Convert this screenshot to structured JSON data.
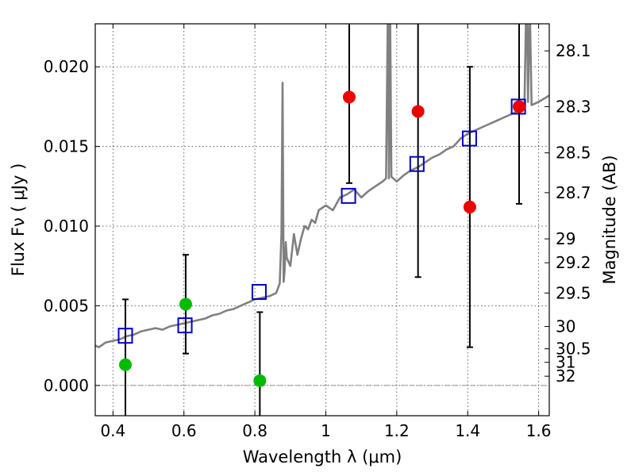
{
  "chart_data": {
    "type": "scatter",
    "xlabel": "Wavelength  λ (μm)",
    "ylabel": "Flux  Fν  ( μJy )",
    "y2label": "Magnitude (AB)",
    "xlim": [
      0.35,
      1.63
    ],
    "ylim": [
      -0.0019,
      0.0227
    ],
    "grid": true,
    "x_ticks": [
      0.4,
      0.6,
      0.8,
      1.0,
      1.2,
      1.4,
      1.6
    ],
    "x_tick_labels": [
      "0.4",
      "0.6",
      "0.8",
      "1",
      "1.2",
      "1.4",
      "1.6"
    ],
    "y_ticks": [
      0.0,
      0.005,
      0.01,
      0.015,
      0.02
    ],
    "y_tick_labels": [
      "0.000",
      "0.005",
      "0.010",
      "0.015",
      "0.020"
    ],
    "mag_ticks": [
      {
        "label": "28.1",
        "flux": 0.021
      },
      {
        "label": "28.3",
        "flux": 0.0175
      },
      {
        "label": "28.5",
        "flux": 0.0146
      },
      {
        "label": "28.7",
        "flux": 0.0121
      },
      {
        "label": "29",
        "flux": 0.0092
      },
      {
        "label": "29.2",
        "flux": 0.0077
      },
      {
        "label": "29.5",
        "flux": 0.0058
      },
      {
        "label": "30",
        "flux": 0.0037
      },
      {
        "label": "30.5",
        "flux": 0.0023
      },
      {
        "label": "31",
        "flux": 0.00145
      },
      {
        "label": "32",
        "flux": 0.00058
      }
    ],
    "colors": {
      "spectrum": "#808080",
      "model_points": "#0000cc",
      "green_points": "#00bb00",
      "red_points": "#ee0000",
      "errorbars": "#000000",
      "grid": "#555555"
    },
    "series": [
      {
        "kind": "spectrum",
        "x": [
          0.35,
          0.36,
          0.38,
          0.4,
          0.42,
          0.44,
          0.46,
          0.48,
          0.5,
          0.52,
          0.54,
          0.56,
          0.58,
          0.6,
          0.62,
          0.64,
          0.66,
          0.68,
          0.7,
          0.72,
          0.74,
          0.76,
          0.78,
          0.8,
          0.82,
          0.84,
          0.86,
          0.87,
          0.875,
          0.878,
          0.881,
          0.884,
          0.887,
          0.89,
          0.9,
          0.91,
          0.92,
          0.93,
          0.94,
          0.95,
          0.96,
          0.97,
          0.98,
          1.0,
          1.02,
          1.04,
          1.06,
          1.08,
          1.1,
          1.12,
          1.14,
          1.16,
          1.17,
          1.175,
          1.178,
          1.181,
          1.185,
          1.19,
          1.2,
          1.22,
          1.24,
          1.26,
          1.28,
          1.3,
          1.32,
          1.34,
          1.36,
          1.38,
          1.4,
          1.42,
          1.44,
          1.46,
          1.48,
          1.5,
          1.52,
          1.54,
          1.55,
          1.56,
          1.565,
          1.567,
          1.57,
          1.575,
          1.58,
          1.6,
          1.63
        ],
        "y": [
          0.0025,
          0.0024,
          0.0027,
          0.0028,
          0.0029,
          0.0031,
          0.0032,
          0.0034,
          0.0035,
          0.0036,
          0.0035,
          0.0037,
          0.0038,
          0.0039,
          0.004,
          0.0041,
          0.0042,
          0.0044,
          0.0045,
          0.0047,
          0.0048,
          0.005,
          0.0052,
          0.0054,
          0.0055,
          0.0056,
          0.0058,
          0.0064,
          0.0095,
          0.019,
          0.0065,
          0.0072,
          0.009,
          0.008,
          0.0075,
          0.0095,
          0.0082,
          0.0092,
          0.01,
          0.0098,
          0.0104,
          0.0102,
          0.011,
          0.0113,
          0.011,
          0.0118,
          0.012,
          0.0123,
          0.0118,
          0.0122,
          0.0125,
          0.0128,
          0.013,
          0.024,
          0.013,
          0.024,
          0.0131,
          0.013,
          0.0128,
          0.0132,
          0.0135,
          0.0137,
          0.014,
          0.0143,
          0.0145,
          0.0148,
          0.015,
          0.0155,
          0.0158,
          0.016,
          0.0162,
          0.0164,
          0.0166,
          0.0168,
          0.017,
          0.0172,
          0.0174,
          0.0175,
          0.024,
          0.024,
          0.0178,
          0.024,
          0.0176,
          0.0178,
          0.0182
        ]
      },
      {
        "kind": "model",
        "x": [
          0.435,
          0.603,
          0.812,
          1.064,
          1.257,
          1.405,
          1.543
        ],
        "y": [
          0.00312,
          0.00377,
          0.00587,
          0.0119,
          0.0139,
          0.0155,
          0.0175
        ]
      },
      {
        "kind": "green",
        "x": [
          0.435,
          0.605,
          0.814
        ],
        "y": [
          0.0013,
          0.0051,
          0.0003
        ],
        "yerr_low": [
          -0.0035,
          0.002,
          -0.0035
        ],
        "yerr_high": [
          0.0054,
          0.0082,
          0.0046
        ]
      },
      {
        "kind": "red",
        "x": [
          1.066,
          1.26,
          1.406,
          1.545
        ],
        "y": [
          0.0181,
          0.0172,
          0.0112,
          0.0175
        ],
        "yerr_low": [
          0.0127,
          0.0068,
          0.0024,
          0.0114
        ],
        "yerr_high": [
          0.024,
          0.024,
          0.02,
          0.024
        ]
      }
    ]
  }
}
